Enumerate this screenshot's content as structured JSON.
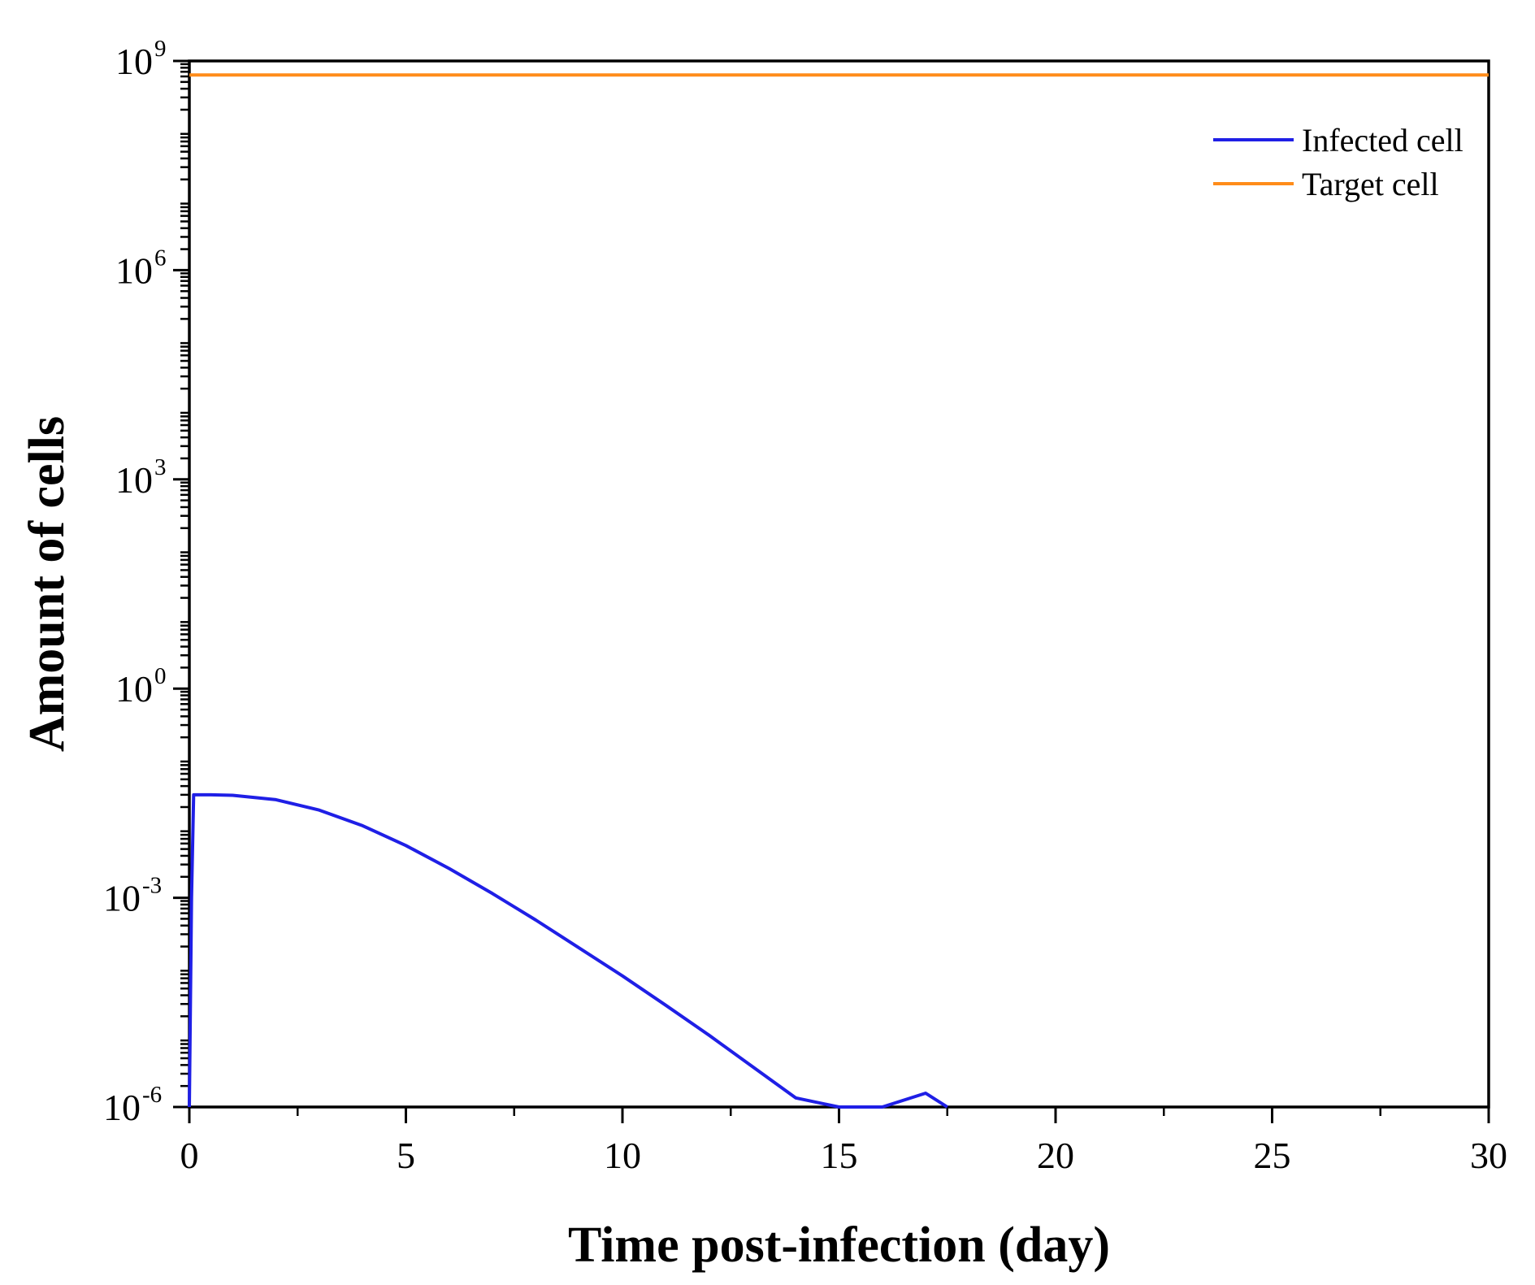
{
  "chart_data": {
    "type": "line",
    "title": "",
    "xlabel": "Time post-infection (day)",
    "ylabel": "Amount of cells",
    "xlim": [
      0,
      30
    ],
    "ylim": [
      1e-06,
      1000000000.0
    ],
    "yscale": "log",
    "x_ticks": [
      {
        "value": 0,
        "label": "0"
      },
      {
        "value": 5,
        "label": "5"
      },
      {
        "value": 10,
        "label": "10"
      },
      {
        "value": 15,
        "label": "15"
      },
      {
        "value": 20,
        "label": "20"
      },
      {
        "value": 25,
        "label": "25"
      },
      {
        "value": 30,
        "label": "30"
      }
    ],
    "y_ticks": [
      {
        "value": 1000000000.0,
        "base": "10",
        "exp": "9"
      },
      {
        "value": 1000000.0,
        "base": "10",
        "exp": "6"
      },
      {
        "value": 1000.0,
        "base": "10",
        "exp": "3"
      },
      {
        "value": 1,
        "base": "10",
        "exp": "0"
      },
      {
        "value": 0.001,
        "base": "10",
        "exp": "-3"
      },
      {
        "value": 1e-06,
        "base": "10",
        "exp": "-6"
      }
    ],
    "grid": false,
    "legend_position": "top-right",
    "series": [
      {
        "name": "Infected cell",
        "color": "#1f1fe6",
        "x": [
          0,
          0.05,
          0.1,
          0.5,
          1,
          2,
          3,
          4,
          5,
          6,
          7,
          8,
          9,
          10,
          11,
          12,
          13,
          14,
          15,
          16,
          17,
          17.5
        ],
        "y": [
          1e-06,
          0.001,
          0.03,
          0.03,
          0.0295,
          0.0255,
          0.0181,
          0.0108,
          0.00562,
          0.00263,
          0.00115,
          0.000479,
          0.000191,
          7.59e-05,
          2.88e-05,
          1.07e-05,
          3.8e-06,
          1.35e-06,
          4.57e-07,
          1.51e-07,
          1.58e-06,
          1e-06
        ]
      },
      {
        "name": "Target cell",
        "color": "#ff8c1a",
        "x": [
          0,
          30
        ],
        "y": [
          630000000.0,
          630000000.0
        ]
      }
    ]
  }
}
